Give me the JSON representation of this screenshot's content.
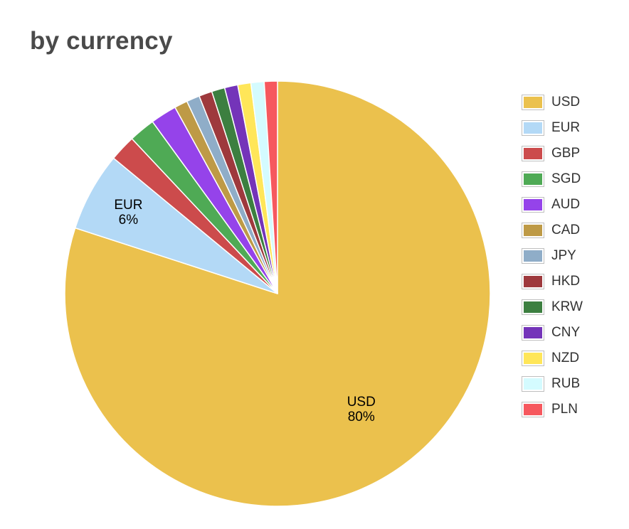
{
  "title": "by currency",
  "chart_data": {
    "type": "pie",
    "start_angle_deg": 0,
    "direction": "clockwise",
    "categories": [
      "USD",
      "EUR",
      "GBP",
      "SGD",
      "AUD",
      "CAD",
      "JPY",
      "HKD",
      "KRW",
      "CNY",
      "NZD",
      "RUB",
      "PLN"
    ],
    "values": [
      80,
      6,
      2,
      2,
      2,
      1,
      1,
      1,
      1,
      1,
      1,
      1,
      1
    ],
    "colors": [
      "#EBC14D",
      "#B3D9F6",
      "#CC4B4C",
      "#4FAA55",
      "#9543EA",
      "#BE9A46",
      "#8FADC8",
      "#9E393D",
      "#3C7F40",
      "#7434B9",
      "#FFE659",
      "#D4FBFF",
      "#F6585E"
    ],
    "data_labels": [
      {
        "category": "USD",
        "text": "USD",
        "percent": "80%"
      },
      {
        "category": "EUR",
        "text": "EUR",
        "percent": "6%"
      }
    ],
    "legend_position": "right"
  }
}
